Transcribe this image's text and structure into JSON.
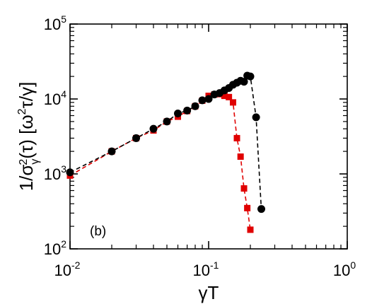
{
  "chart_data": {
    "type": "line",
    "xscale": "log",
    "yscale": "log",
    "xlim": [
      0.01,
      1
    ],
    "ylim": [
      100,
      100000
    ],
    "grid": false,
    "x_ticks": [
      {
        "base": "10",
        "exp": "-2",
        "value": 0.01
      },
      {
        "base": "10",
        "exp": "-1",
        "value": 0.1
      },
      {
        "base": "10",
        "exp": "0",
        "value": 1
      }
    ],
    "y_ticks": [
      {
        "base": "10",
        "exp": "2",
        "value": 100
      },
      {
        "base": "10",
        "exp": "3",
        "value": 1000
      },
      {
        "base": "10",
        "exp": "4",
        "value": 10000
      },
      {
        "base": "10",
        "exp": "5",
        "value": 100000
      }
    ],
    "xlabel": "γT",
    "ylabel": "1/σγ2(τ) [ω2τ/γ]",
    "panel_label": "(b)",
    "series": [
      {
        "marker": "circle",
        "color": "#000000",
        "linestyle": "dashed",
        "points": [
          [
            0.01,
            1050
          ],
          [
            0.02,
            2000
          ],
          [
            0.03,
            3000
          ],
          [
            0.04,
            4000
          ],
          [
            0.05,
            5000
          ],
          [
            0.06,
            6400
          ],
          [
            0.07,
            7000
          ],
          [
            0.08,
            8000
          ],
          [
            0.09,
            9600
          ],
          [
            0.1,
            10000
          ],
          [
            0.11,
            11500
          ],
          [
            0.12,
            12000
          ],
          [
            0.13,
            13000
          ],
          [
            0.14,
            14000
          ],
          [
            0.15,
            15500
          ],
          [
            0.16,
            16500
          ],
          [
            0.17,
            17500
          ],
          [
            0.18,
            17000
          ],
          [
            0.19,
            20500
          ],
          [
            0.2,
            20000
          ],
          [
            0.22,
            5700
          ],
          [
            0.24,
            340
          ]
        ]
      },
      {
        "marker": "square",
        "color": "#e00000",
        "linestyle": "dashed",
        "points": [
          [
            0.01,
            950
          ],
          [
            0.02,
            2000
          ],
          [
            0.03,
            3000
          ],
          [
            0.04,
            3800
          ],
          [
            0.05,
            5000
          ],
          [
            0.06,
            5800
          ],
          [
            0.07,
            6900
          ],
          [
            0.08,
            8000
          ],
          [
            0.09,
            9500
          ],
          [
            0.1,
            11000
          ],
          [
            0.11,
            11500
          ],
          [
            0.12,
            11600
          ],
          [
            0.13,
            11000
          ],
          [
            0.14,
            10600
          ],
          [
            0.15,
            9000
          ],
          [
            0.16,
            3000
          ],
          [
            0.17,
            1700
          ],
          [
            0.18,
            640
          ],
          [
            0.19,
            350
          ],
          [
            0.2,
            180
          ]
        ]
      }
    ]
  }
}
